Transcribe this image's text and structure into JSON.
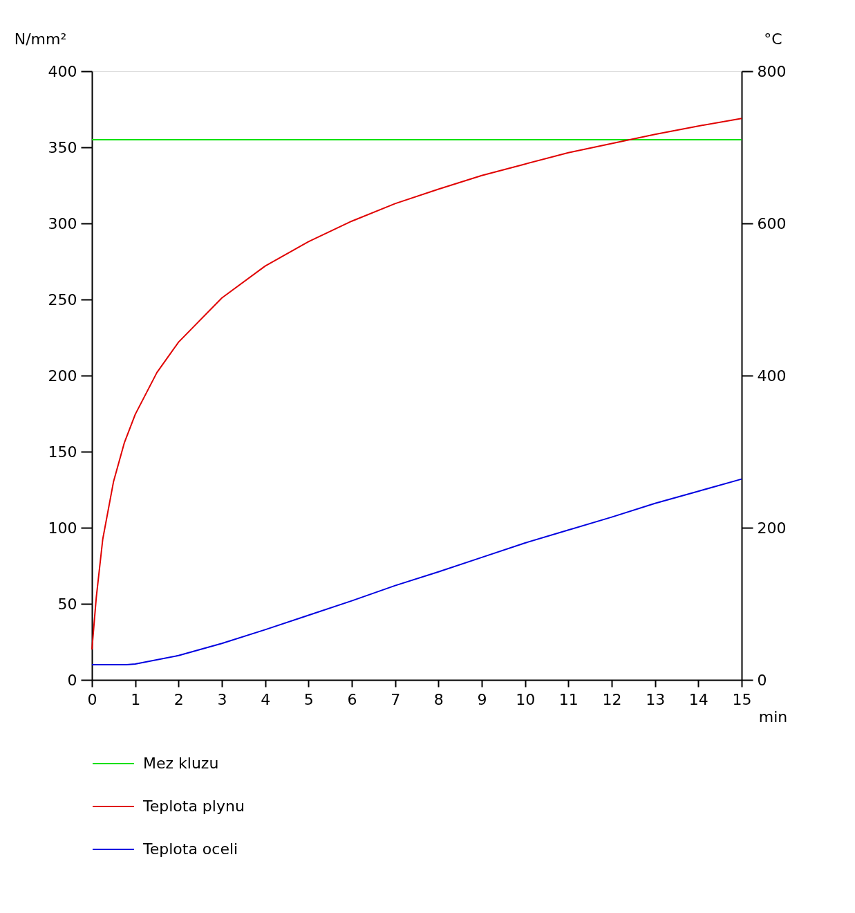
{
  "chart_data": {
    "type": "line",
    "xlabel": "min",
    "ylabel": "N/mm²",
    "y2label": "°C",
    "xlim": [
      0,
      15
    ],
    "xticks": [
      0,
      1,
      2,
      3,
      4,
      5,
      6,
      7,
      8,
      9,
      10,
      11,
      12,
      13,
      14,
      15
    ],
    "ylim": [
      0,
      400
    ],
    "yticks": [
      0,
      50,
      100,
      150,
      200,
      250,
      300,
      350,
      400
    ],
    "y2lim": [
      0,
      800
    ],
    "y2ticks": [
      0,
      200,
      400,
      600,
      800
    ],
    "grid": false,
    "legend": "bottom",
    "series": [
      {
        "name": "Mez kluzu",
        "color": "#00e000",
        "x": [
          0,
          15
        ],
        "values": [
          355,
          355
        ]
      },
      {
        "name": "Teplota plynu",
        "color": "#e00000",
        "axis": "y2",
        "x": [
          0,
          0.1,
          0.25,
          0.5,
          0.75,
          1,
          1.5,
          2,
          3,
          4,
          5,
          6,
          7,
          8,
          9,
          10,
          11,
          12,
          13,
          14,
          15
        ],
        "values": [
          40,
          108,
          185,
          261,
          312,
          349,
          404,
          444,
          502,
          544,
          576,
          603,
          626,
          645,
          663,
          678,
          693,
          705,
          717,
          728,
          738
        ]
      },
      {
        "name": "Teplota oceli",
        "color": "#0000e0",
        "axis": "y2",
        "x": [
          0,
          0.8,
          1,
          2,
          3,
          4,
          5,
          6,
          7,
          8,
          9,
          10,
          11,
          12,
          13,
          14,
          15
        ],
        "values": [
          20,
          20,
          21,
          32,
          48,
          66,
          85,
          104,
          124,
          142,
          161,
          180,
          197,
          214,
          232,
          248,
          264
        ]
      }
    ]
  }
}
